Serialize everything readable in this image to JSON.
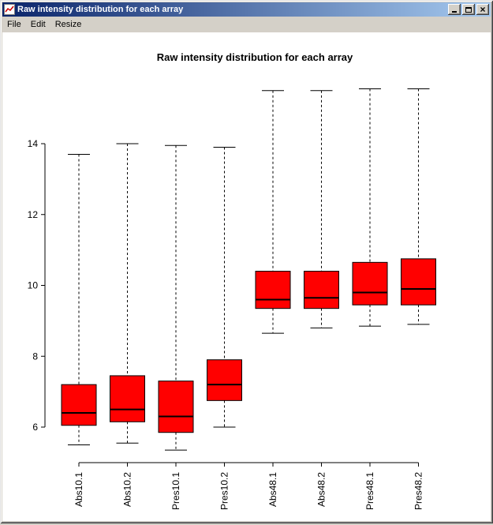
{
  "window": {
    "title": "Raw intensity distribution for each array"
  },
  "icons": {
    "window_icon": "chart-page",
    "minimize_icon": "minimize-bar",
    "maximize_icon": "maximize-square",
    "close_icon": "×"
  },
  "menubar": {
    "items": [
      {
        "label": "File"
      },
      {
        "label": "Edit"
      },
      {
        "label": "Resize"
      }
    ]
  },
  "chart_data": {
    "type": "boxplot",
    "title": "Raw intensity distribution for each array",
    "categories": [
      "Abs10.1",
      "Abs10.2",
      "Pres10.1",
      "Pres10.2",
      "Abs48.1",
      "Abs48.2",
      "Pres48.1",
      "Pres48.2"
    ],
    "boxes": [
      {
        "label": "Abs10.1",
        "low": 5.5,
        "q1": 6.05,
        "median": 6.4,
        "q3": 7.2,
        "high": 13.7
      },
      {
        "label": "Abs10.2",
        "low": 5.55,
        "q1": 6.15,
        "median": 6.5,
        "q3": 7.45,
        "high": 14.0
      },
      {
        "label": "Pres10.1",
        "low": 5.35,
        "q1": 5.85,
        "median": 6.3,
        "q3": 7.3,
        "high": 13.95
      },
      {
        "label": "Pres10.2",
        "low": 6.0,
        "q1": 6.75,
        "median": 7.2,
        "q3": 7.9,
        "high": 13.9
      },
      {
        "label": "Abs48.1",
        "low": 8.65,
        "q1": 9.35,
        "median": 9.6,
        "q3": 10.4,
        "high": 15.5
      },
      {
        "label": "Abs48.2",
        "low": 8.8,
        "q1": 9.35,
        "median": 9.65,
        "q3": 10.4,
        "high": 15.5
      },
      {
        "label": "Pres48.1",
        "low": 8.85,
        "q1": 9.45,
        "median": 9.8,
        "q3": 10.65,
        "high": 15.55
      },
      {
        "label": "Pres48.2",
        "low": 8.9,
        "q1": 9.45,
        "median": 9.9,
        "q3": 10.75,
        "high": 15.55
      }
    ],
    "yticks": [
      6,
      8,
      10,
      12,
      14
    ],
    "ylim": [
      5.2,
      15.7
    ],
    "xlabel": "",
    "ylabel": "",
    "grid": false,
    "box_fill": "#ff0000",
    "whisker_style": "dashed"
  },
  "colors": {
    "titlebar_gradient_left": "#0a246a",
    "titlebar_gradient_right": "#a6caf0",
    "window_face": "#d4d0c8",
    "box_fill": "#ff0000",
    "plot_background": "#ffffff"
  }
}
